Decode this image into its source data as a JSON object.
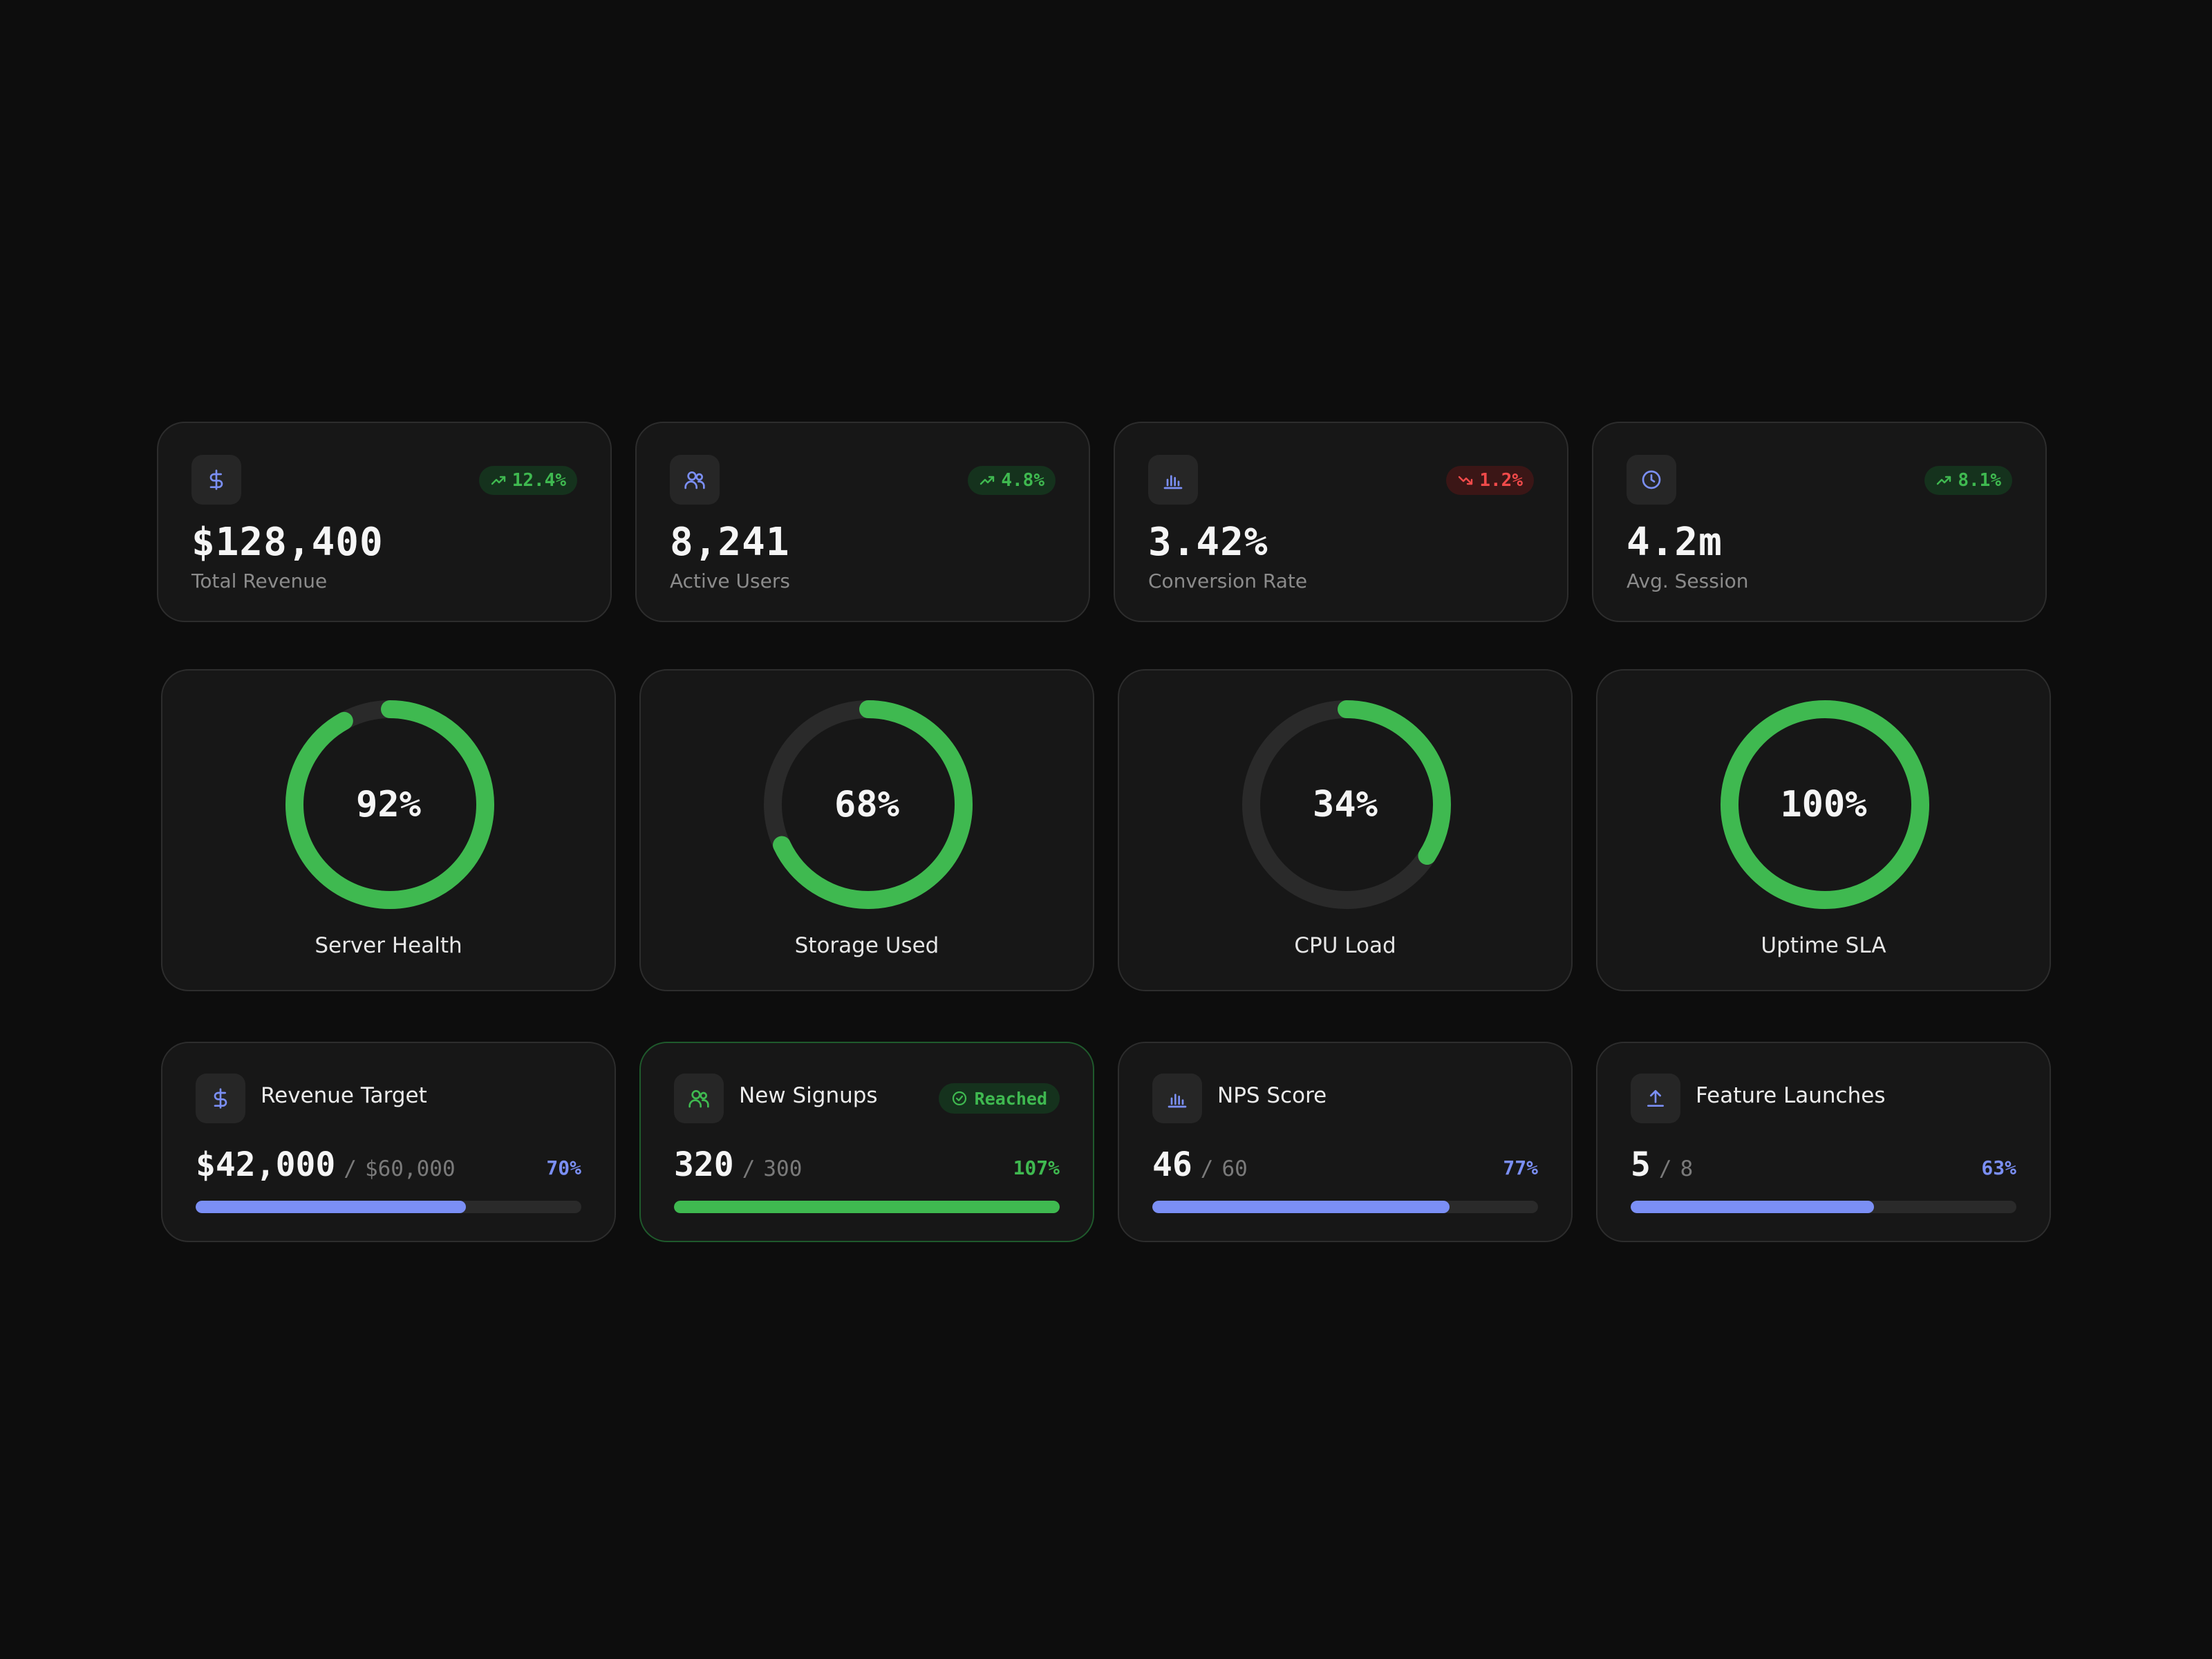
{
  "colors": {
    "accent_blue": "#7b8ff5",
    "success_green": "#3fb950",
    "danger_red": "#f04a4a",
    "track": "#2a2a2a"
  },
  "stats": [
    {
      "icon": "dollar-icon",
      "trend": "up",
      "change": "12.4%",
      "value": "$128,400",
      "label": "Total Revenue"
    },
    {
      "icon": "users-icon",
      "trend": "up",
      "change": "4.8%",
      "value": "8,241",
      "label": "Active Users"
    },
    {
      "icon": "bar-chart-icon",
      "trend": "down",
      "change": "1.2%",
      "value": "3.42%",
      "label": "Conversion Rate"
    },
    {
      "icon": "clock-icon",
      "trend": "up",
      "change": "8.1%",
      "value": "4.2m",
      "label": "Avg. Session"
    }
  ],
  "gauges": [
    {
      "percent": 92,
      "value": "92%",
      "label": "Server Health"
    },
    {
      "percent": 68,
      "value": "68%",
      "label": "Storage Used"
    },
    {
      "percent": 34,
      "value": "34%",
      "label": "CPU Load"
    },
    {
      "percent": 100,
      "value": "100%",
      "label": "Uptime SLA"
    }
  ],
  "goals": [
    {
      "icon": "dollar-icon",
      "title": "Revenue Target",
      "value": "$42,000",
      "separator": "/",
      "target": "$60,000",
      "pct": "70%",
      "progress": 0.7,
      "reached": false
    },
    {
      "icon": "users-icon",
      "title": "New Signups",
      "value": "320",
      "separator": "/",
      "target": "300",
      "pct": "107%",
      "progress": 1.0,
      "reached": true,
      "badge": "Reached"
    },
    {
      "icon": "bar-chart-icon",
      "title": "NPS Score",
      "value": "46",
      "separator": "/",
      "target": "60",
      "pct": "77%",
      "progress": 0.77,
      "reached": false
    },
    {
      "icon": "upload-icon",
      "title": "Feature Launches",
      "value": "5",
      "separator": "/",
      "target": "8",
      "pct": "63%",
      "progress": 0.63,
      "reached": false
    }
  ]
}
